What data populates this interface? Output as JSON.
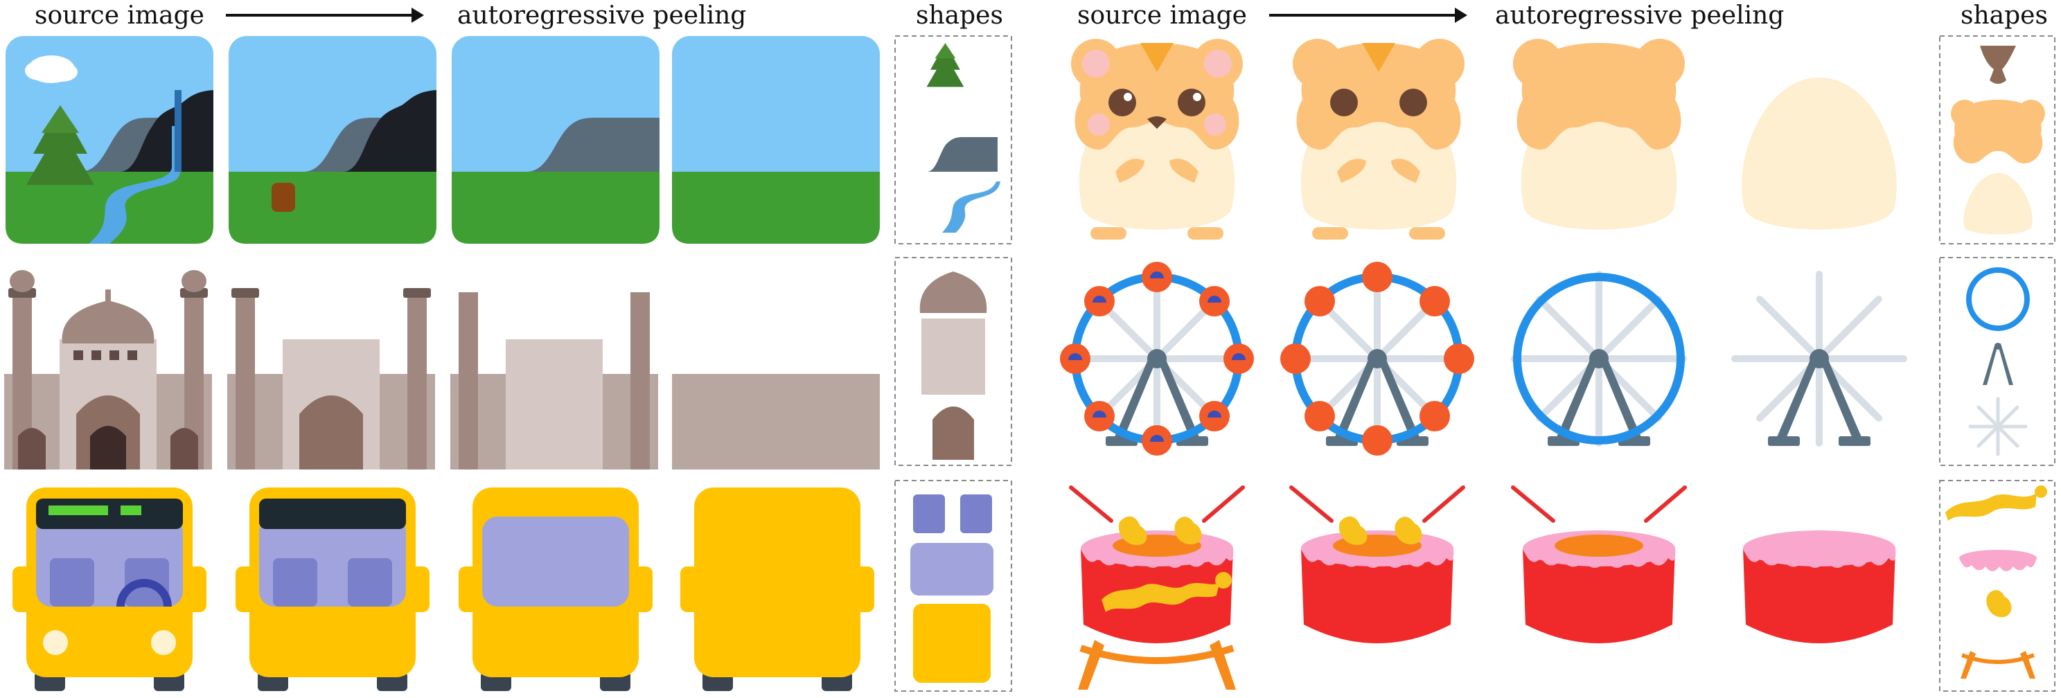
{
  "headers": {
    "left": {
      "source": "source image",
      "peeling": "autoregressive peeling",
      "shapes": "shapes"
    },
    "right": {
      "source": "source image",
      "peeling": "autoregressive peeling",
      "shapes": "shapes"
    }
  },
  "rows": {
    "left": [
      "landscape",
      "mosque",
      "bus"
    ],
    "right": [
      "hamster",
      "ferris-wheel",
      "drum"
    ]
  },
  "palette": {
    "sky": "#7EC8F8",
    "grass": "#3F9F32",
    "cliff_dark": "#1C1F26",
    "cliff_gray": "#5A6B79",
    "river": "#55A8E6",
    "tree": "#3E7F2C",
    "mosque_light": "#D5C8C4",
    "mosque_mid": "#B8A7A0",
    "mosque_dome": "#A08880",
    "bus_yellow": "#FFC300",
    "bus_window": "#A1A4DC",
    "hamster_orange": "#FDC27A",
    "hamster_cream": "#FDEFCF",
    "wheel_blue": "#2391EA",
    "wheel_red": "#F25A2A",
    "drum_red": "#F02A2A",
    "drum_pink": "#F9A7CC",
    "drum_gold": "#F6C21B"
  }
}
